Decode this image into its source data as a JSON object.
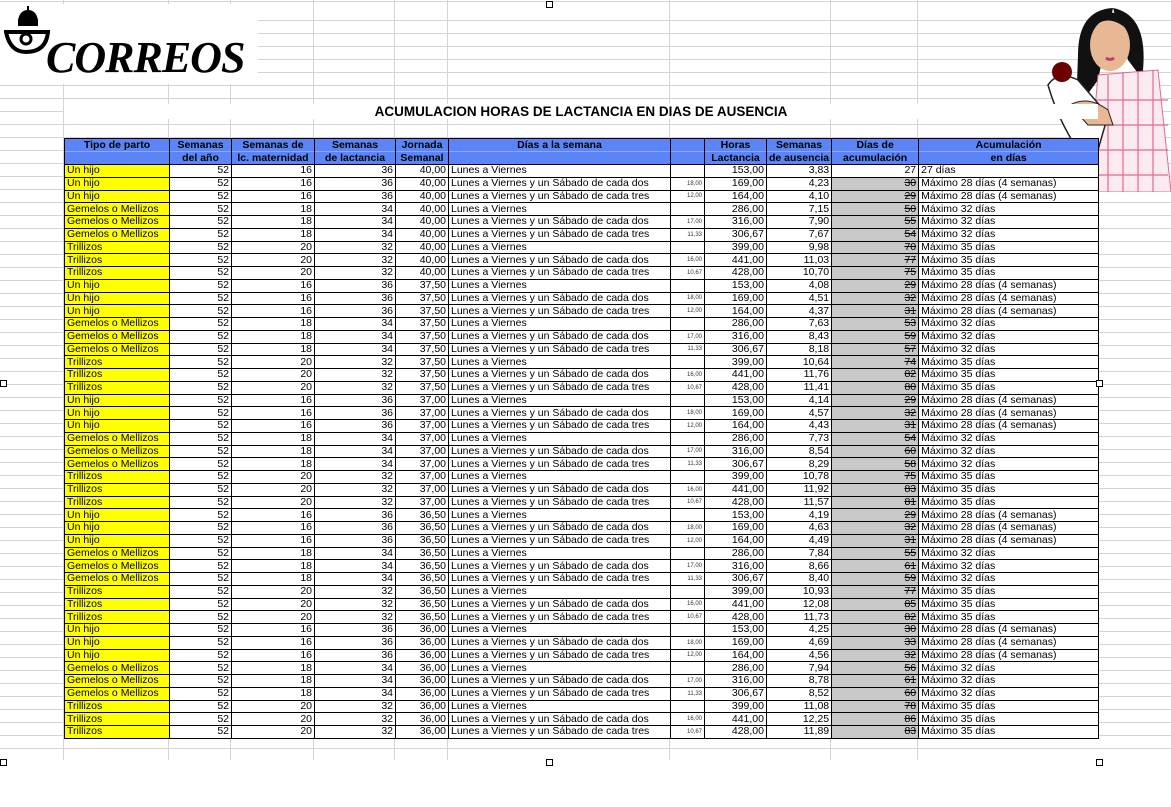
{
  "logo": {
    "brand": "CORREOS"
  },
  "title": "ACUMULACION HORAS DE LACTANCIA EN DIAS DE AUSENCIA",
  "table": {
    "headers": [
      [
        "Tipo de parto",
        ""
      ],
      [
        "Semanas",
        "del año"
      ],
      [
        "Semanas de",
        "lc. maternidad"
      ],
      [
        "Semanas",
        "de lactancia"
      ],
      [
        "Jornada",
        "Semanal"
      ],
      [
        "Días a la semana",
        ""
      ],
      [
        "",
        ""
      ],
      [
        "Horas",
        "Lactancia"
      ],
      [
        "Semanas",
        "de ausencia"
      ],
      [
        "Días de",
        "acumulación"
      ],
      [
        "Acumulación",
        "en días"
      ]
    ],
    "rows": [
      [
        "Un hijo",
        "52",
        "16",
        "36",
        "40,00",
        "Lunes a Viernes",
        "",
        "153,00",
        "3,83",
        "27",
        "27 días"
      ],
      [
        "Un hijo",
        "52",
        "16",
        "36",
        "40,00",
        "Lunes a Viernes y un Sábado de cada dos",
        "18,00",
        "169,00",
        "4,23",
        "30",
        "Máximo 28 días (4 semanas)"
      ],
      [
        "Un hijo",
        "52",
        "16",
        "36",
        "40,00",
        "Lunes a Viernes y un Sábado de cada tres",
        "12,00",
        "164,00",
        "4,10",
        "29",
        "Máximo 28 días (4 semanas)"
      ],
      [
        "Gemelos o Mellizos",
        "52",
        "18",
        "34",
        "40,00",
        "Lunes a Viernes",
        "",
        "286,00",
        "7,15",
        "50",
        "Máximo 32 días"
      ],
      [
        "Gemelos o Mellizos",
        "52",
        "18",
        "34",
        "40,00",
        "Lunes a Viernes y un Sábado de cada dos",
        "17,00",
        "316,00",
        "7,90",
        "55",
        "Máximo 32 días"
      ],
      [
        "Gemelos o Mellizos",
        "52",
        "18",
        "34",
        "40,00",
        "Lunes a Viernes y un Sábado de cada tres",
        "11,33",
        "306,67",
        "7,67",
        "54",
        "Máximo 32 días"
      ],
      [
        "Trillizos",
        "52",
        "20",
        "32",
        "40,00",
        "Lunes a Viernes",
        "",
        "399,00",
        "9,98",
        "70",
        "Máximo 35 días"
      ],
      [
        "Trillizos",
        "52",
        "20",
        "32",
        "40,00",
        "Lunes a Viernes y un Sábado de cada dos",
        "16,00",
        "441,00",
        "11,03",
        "77",
        "Máximo 35 días"
      ],
      [
        "Trillizos",
        "52",
        "20",
        "32",
        "40,00",
        "Lunes a Viernes y un Sábado de cada tres",
        "10,67",
        "428,00",
        "10,70",
        "75",
        "Máximo 35 días"
      ],
      [
        "Un hijo",
        "52",
        "16",
        "36",
        "37,50",
        "Lunes a Viernes",
        "",
        "153,00",
        "4,08",
        "29",
        "Máximo 28 días (4 semanas)"
      ],
      [
        "Un hijo",
        "52",
        "16",
        "36",
        "37,50",
        "Lunes a Viernes y un Sábado de cada dos",
        "18,00",
        "169,00",
        "4,51",
        "32",
        "Máximo 28 días (4 semanas)"
      ],
      [
        "Un hijo",
        "52",
        "16",
        "36",
        "37,50",
        "Lunes a Viernes y un Sábado de cada tres",
        "12,00",
        "164,00",
        "4,37",
        "31",
        "Máximo 28 días (4 semanas)"
      ],
      [
        "Gemelos o Mellizos",
        "52",
        "18",
        "34",
        "37,50",
        "Lunes a Viernes",
        "",
        "286,00",
        "7,63",
        "53",
        "Máximo 32 días"
      ],
      [
        "Gemelos o Mellizos",
        "52",
        "18",
        "34",
        "37,50",
        "Lunes a Viernes y un Sábado de cada dos",
        "17,00",
        "316,00",
        "8,43",
        "59",
        "Máximo 32 días"
      ],
      [
        "Gemelos o Mellizos",
        "52",
        "18",
        "34",
        "37,50",
        "Lunes a Viernes y un Sábado de cada tres",
        "11,33",
        "306,67",
        "8,18",
        "57",
        "Máximo 32 días"
      ],
      [
        "Trillizos",
        "52",
        "20",
        "32",
        "37,50",
        "Lunes a Viernes",
        "",
        "399,00",
        "10,64",
        "74",
        "Máximo 35 días"
      ],
      [
        "Trillizos",
        "52",
        "20",
        "32",
        "37,50",
        "Lunes a Viernes y un Sábado de cada dos",
        "16,00",
        "441,00",
        "11,76",
        "82",
        "Máximo 35 días"
      ],
      [
        "Trillizos",
        "52",
        "20",
        "32",
        "37,50",
        "Lunes a Viernes y un Sábado de cada tres",
        "10,67",
        "428,00",
        "11,41",
        "80",
        "Máximo 35 días"
      ],
      [
        "Un hijo",
        "52",
        "16",
        "36",
        "37,00",
        "Lunes a Viernes",
        "",
        "153,00",
        "4,14",
        "29",
        "Máximo 28 días (4 semanas)"
      ],
      [
        "Un hijo",
        "52",
        "16",
        "36",
        "37,00",
        "Lunes a Viernes y un Sábado de cada dos",
        "18,00",
        "169,00",
        "4,57",
        "32",
        "Máximo 28 días (4 semanas)"
      ],
      [
        "Un hijo",
        "52",
        "16",
        "36",
        "37,00",
        "Lunes a Viernes y un Sábado de cada tres",
        "12,00",
        "164,00",
        "4,43",
        "31",
        "Máximo 28 días (4 semanas)"
      ],
      [
        "Gemelos o Mellizos",
        "52",
        "18",
        "34",
        "37,00",
        "Lunes a Viernes",
        "",
        "286,00",
        "7,73",
        "54",
        "Máximo 32 días"
      ],
      [
        "Gemelos o Mellizos",
        "52",
        "18",
        "34",
        "37,00",
        "Lunes a Viernes y un Sábado de cada dos",
        "17,00",
        "316,00",
        "8,54",
        "60",
        "Máximo 32 días"
      ],
      [
        "Gemelos o Mellizos",
        "52",
        "18",
        "34",
        "37,00",
        "Lunes a Viernes y un Sábado de cada tres",
        "11,33",
        "306,67",
        "8,29",
        "58",
        "Máximo 32 días"
      ],
      [
        "Trillizos",
        "52",
        "20",
        "32",
        "37,00",
        "Lunes a Viernes",
        "",
        "399,00",
        "10,78",
        "75",
        "Máximo 35 días"
      ],
      [
        "Trillizos",
        "52",
        "20",
        "32",
        "37,00",
        "Lunes a Viernes y un Sábado de cada dos",
        "16,00",
        "441,00",
        "11,92",
        "83",
        "Máximo 35 días"
      ],
      [
        "Trillizos",
        "52",
        "20",
        "32",
        "37,00",
        "Lunes a Viernes y un Sábado de cada tres",
        "10,67",
        "428,00",
        "11,57",
        "81",
        "Máximo 35 días"
      ],
      [
        "Un hijo",
        "52",
        "16",
        "36",
        "36,50",
        "Lunes a Viernes",
        "",
        "153,00",
        "4,19",
        "29",
        "Máximo 28 días (4 semanas)"
      ],
      [
        "Un hijo",
        "52",
        "16",
        "36",
        "36,50",
        "Lunes a Viernes y un Sábado de cada dos",
        "18,00",
        "169,00",
        "4,63",
        "32",
        "Máximo 28 días (4 semanas)"
      ],
      [
        "Un hijo",
        "52",
        "16",
        "36",
        "36,50",
        "Lunes a Viernes y un Sábado de cada tres",
        "12,00",
        "164,00",
        "4,49",
        "31",
        "Máximo 28 días (4 semanas)"
      ],
      [
        "Gemelos o Mellizos",
        "52",
        "18",
        "34",
        "36,50",
        "Lunes a Viernes",
        "",
        "286,00",
        "7,84",
        "55",
        "Máximo 32 días"
      ],
      [
        "Gemelos o Mellizos",
        "52",
        "18",
        "34",
        "36,50",
        "Lunes a Viernes y un Sábado de cada dos",
        "17,00",
        "316,00",
        "8,66",
        "61",
        "Máximo 32 días"
      ],
      [
        "Gemelos o Mellizos",
        "52",
        "18",
        "34",
        "36,50",
        "Lunes a Viernes y un Sábado de cada tres",
        "11,33",
        "306,67",
        "8,40",
        "59",
        "Máximo 32 días"
      ],
      [
        "Trillizos",
        "52",
        "20",
        "32",
        "36,50",
        "Lunes a Viernes",
        "",
        "399,00",
        "10,93",
        "77",
        "Máximo 35 días"
      ],
      [
        "Trillizos",
        "52",
        "20",
        "32",
        "36,50",
        "Lunes a Viernes y un Sábado de cada dos",
        "16,00",
        "441,00",
        "12,08",
        "85",
        "Máximo 35 días"
      ],
      [
        "Trillizos",
        "52",
        "20",
        "32",
        "36,50",
        "Lunes a Viernes y un Sábado de cada tres",
        "10,67",
        "428,00",
        "11,73",
        "82",
        "Máximo 35 días"
      ],
      [
        "Un hijo",
        "52",
        "16",
        "36",
        "36,00",
        "Lunes a Viernes",
        "",
        "153,00",
        "4,25",
        "30",
        "Máximo 28 días (4 semanas)"
      ],
      [
        "Un hijo",
        "52",
        "16",
        "36",
        "36,00",
        "Lunes a Viernes y un Sábado de cada dos",
        "18,00",
        "169,00",
        "4,69",
        "33",
        "Máximo 28 días (4 semanas)"
      ],
      [
        "Un hijo",
        "52",
        "16",
        "36",
        "36,00",
        "Lunes a Viernes y un Sábado de cada tres",
        "12,00",
        "164,00",
        "4,56",
        "32",
        "Máximo 28 días (4 semanas)"
      ],
      [
        "Gemelos o Mellizos",
        "52",
        "18",
        "34",
        "36,00",
        "Lunes a Viernes",
        "",
        "286,00",
        "7,94",
        "56",
        "Máximo 32 días"
      ],
      [
        "Gemelos o Mellizos",
        "52",
        "18",
        "34",
        "36,00",
        "Lunes a Viernes y un Sábado de cada dos",
        "17,00",
        "316,00",
        "8,78",
        "61",
        "Máximo 32 días"
      ],
      [
        "Gemelos o Mellizos",
        "52",
        "18",
        "34",
        "36,00",
        "Lunes a Viernes y un Sábado de cada tres",
        "11,33",
        "306,67",
        "8,52",
        "60",
        "Máximo 32 días"
      ],
      [
        "Trillizos",
        "52",
        "20",
        "32",
        "36,00",
        "Lunes a Viernes",
        "",
        "399,00",
        "11,08",
        "78",
        "Máximo 35 días"
      ],
      [
        "Trillizos",
        "52",
        "20",
        "32",
        "36,00",
        "Lunes a Viernes y un Sábado de cada dos",
        "16,00",
        "441,00",
        "12,25",
        "86",
        "Máximo 35 días"
      ],
      [
        "Trillizos",
        "52",
        "20",
        "32",
        "36,00",
        "Lunes a Viernes y un Sábado de cada tres",
        "10,67",
        "428,00",
        "11,89",
        "83",
        "Máximo 35 días"
      ]
    ],
    "unstruck_rows": [
      0
    ]
  },
  "colors": {
    "header": "#5b84f6",
    "tipo_cell": "#ffff00",
    "struck_cell": "#c8c8c8"
  }
}
